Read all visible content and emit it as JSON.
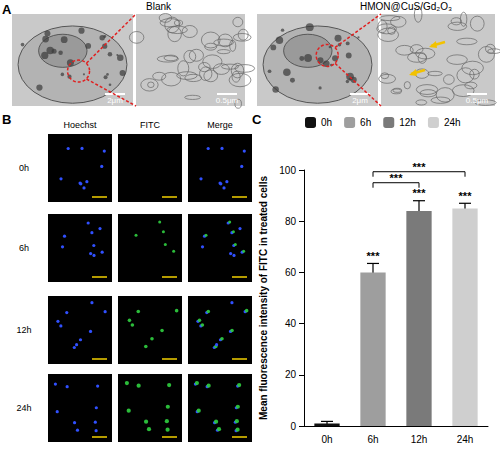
{
  "panel_a": {
    "label": "A",
    "groups": [
      {
        "title": "Blank",
        "scale_bars": [
          "2μm",
          "0.5μm"
        ]
      },
      {
        "title": "HMON@CuS/Gd₂O₃",
        "scale_bars": [
          "2μm",
          "0.5μm"
        ]
      }
    ]
  },
  "panel_b": {
    "label": "B",
    "columns": [
      "Hoechst",
      "FITC",
      "Merge"
    ],
    "rows": [
      "0h",
      "6h",
      "12h",
      "24h"
    ]
  },
  "chart_data": {
    "type": "bar",
    "panel_label": "C",
    "y_label": "Mean fluorescence intensity of FITC in treated cells",
    "categories": [
      "0h",
      "6h",
      "12h",
      "24h"
    ],
    "values": [
      1,
      60,
      84,
      85
    ],
    "errors": [
      0.8,
      3.5,
      4,
      2
    ],
    "colors": [
      "#111111",
      "#9e9e9e",
      "#7a7a7a",
      "#cfcfcf"
    ],
    "ylim": [
      0,
      100
    ],
    "yticks": [
      0,
      20,
      40,
      60,
      80,
      100
    ],
    "grid": false,
    "legend": "top",
    "significance": [
      {
        "category": "6h",
        "label": "***"
      },
      {
        "category": "12h",
        "label": "***"
      },
      {
        "category": "24h",
        "label": "***"
      }
    ],
    "comparisons": [
      {
        "from": "6h",
        "to": "12h",
        "label": "***"
      },
      {
        "from": "6h",
        "to": "24h",
        "label": "***"
      }
    ]
  }
}
